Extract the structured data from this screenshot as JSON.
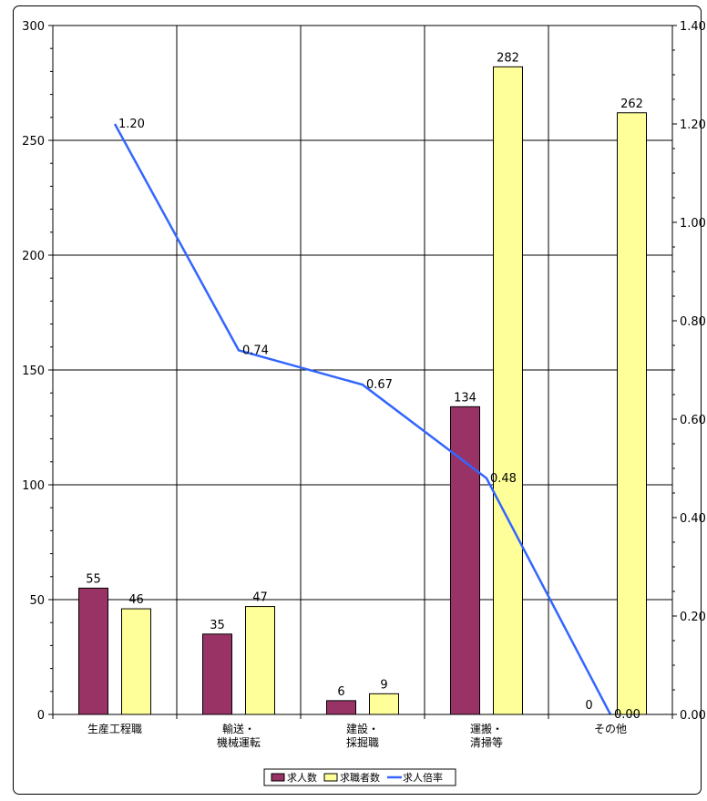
{
  "chart_data": {
    "type": "bar",
    "categories": [
      [
        "生産工程職"
      ],
      [
        "輸送・",
        "機械運転"
      ],
      [
        "建設・",
        "採掘職"
      ],
      [
        "運搬・",
        "清掃等"
      ],
      [
        "その他"
      ]
    ],
    "series": [
      {
        "name": "求人数",
        "type": "bar",
        "axis": "left",
        "color": "#993366",
        "values": [
          55,
          35,
          6,
          134,
          0
        ]
      },
      {
        "name": "求職者数",
        "type": "bar",
        "axis": "left",
        "color": "#ffff99",
        "values": [
          46,
          47,
          9,
          282,
          262
        ]
      },
      {
        "name": "求人倍率",
        "type": "line",
        "axis": "right",
        "color": "#3366ff",
        "values": [
          1.2,
          0.74,
          0.67,
          0.48,
          0.0
        ]
      }
    ],
    "data_labels": {
      "bars": [
        [
          "55",
          "35",
          "6",
          "134",
          "0"
        ],
        [
          "46",
          "47",
          "9",
          "282",
          "262"
        ]
      ],
      "line": [
        "1.20",
        "0.74",
        "0.67",
        "0.48",
        "0.00"
      ]
    },
    "y_left": {
      "min": 0,
      "max": 300,
      "ticks": [
        0,
        50,
        100,
        150,
        200,
        250,
        300
      ]
    },
    "y_right": {
      "min": 0,
      "max": 1.4,
      "tick_labels": [
        "0.00",
        "0.20",
        "0.40",
        "0.60",
        "0.80",
        "1.00",
        "1.20",
        "1.40"
      ]
    },
    "grid": true,
    "legend_position": "bottom"
  }
}
